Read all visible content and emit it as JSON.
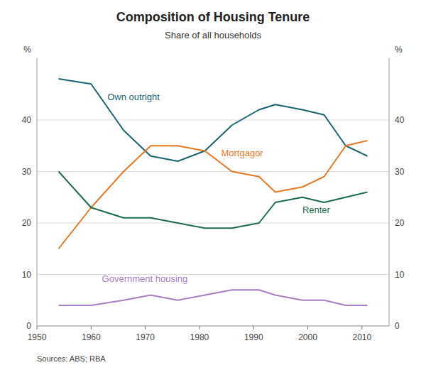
{
  "chart_data": {
    "type": "line",
    "title": "Composition of Housing Tenure",
    "subtitle": "Share of all households",
    "source": "Sources:  ABS; RBA",
    "y_label": "%",
    "y2_label": "%",
    "x": [
      1954,
      1960,
      1966,
      1971,
      1976,
      1981,
      1986,
      1991,
      1994,
      1999,
      2003,
      2007,
      2011
    ],
    "xlim": [
      1950,
      2015
    ],
    "xticks": [
      1950,
      1960,
      1970,
      1980,
      1990,
      2000,
      2010
    ],
    "ylim": [
      0,
      52
    ],
    "yticks": [
      0,
      10,
      20,
      30,
      40
    ],
    "y2lim": [
      0,
      52
    ],
    "y2ticks": [
      0,
      10,
      20,
      30,
      40
    ],
    "grid": true,
    "series": [
      {
        "name": "Own outright",
        "color": "#1a6370",
        "values": [
          48,
          47,
          38,
          33,
          32,
          34,
          39,
          42,
          43,
          42,
          41,
          35,
          33
        ]
      },
      {
        "name": "Mortgagor",
        "color": "#e87722",
        "values": [
          15,
          23,
          30,
          35,
          35,
          34,
          30,
          29,
          26,
          27,
          29,
          35,
          36
        ]
      },
      {
        "name": "Renter",
        "color": "#1c6b4a",
        "values": [
          30,
          23,
          21,
          21,
          20,
          19,
          19,
          20,
          24,
          25,
          24,
          25,
          26
        ]
      },
      {
        "name": "Government housing",
        "color": "#a87dc2",
        "values": [
          4,
          4,
          5,
          6,
          5,
          6,
          7,
          7,
          6,
          5,
          5,
          4,
          4
        ]
      }
    ],
    "annotations": [
      {
        "text": "Own outright",
        "x": 1963,
        "y": 43.5
      },
      {
        "text": "Mortgagor",
        "x": 1984,
        "y": 32.5
      },
      {
        "text": "Renter",
        "x": 1999,
        "y": 21.5
      },
      {
        "text": "Government housing",
        "x": 1962,
        "y": 8.2
      }
    ]
  }
}
